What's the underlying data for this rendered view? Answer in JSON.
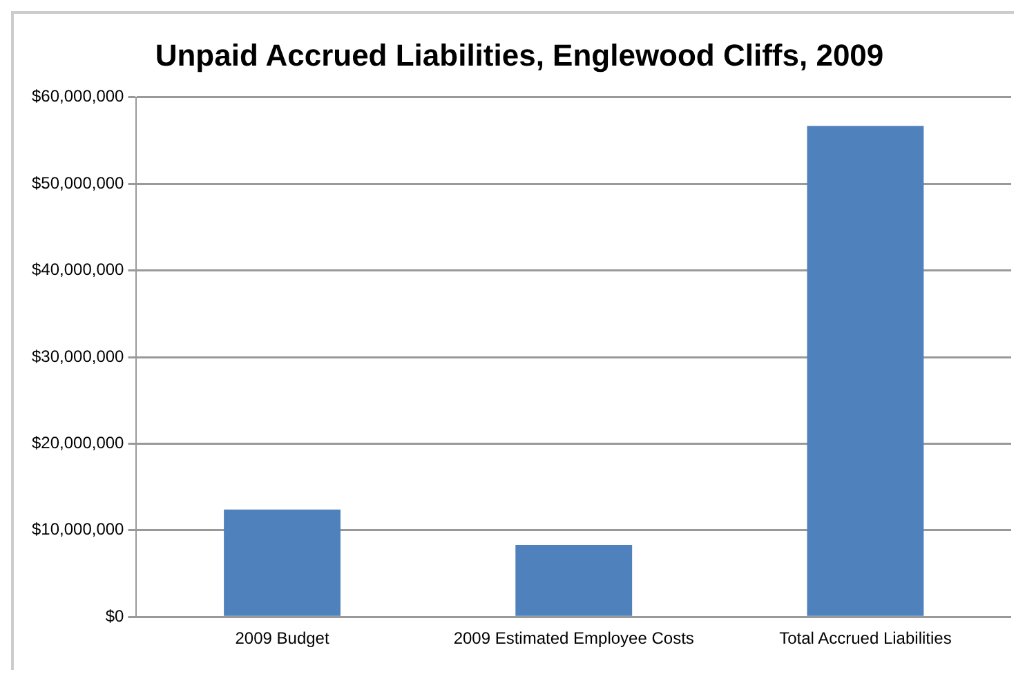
{
  "chart_data": {
    "type": "bar",
    "title": "Unpaid Accrued Liabilities, Englewood Cliffs, 2009",
    "categories": [
      "2009 Budget",
      "2009 Estimated Employee Costs",
      "Total Accrued Liabilities"
    ],
    "values": [
      12400000,
      8300000,
      56700000
    ],
    "color": "#4f81bd",
    "ylim": [
      0,
      60000000
    ],
    "yticks": [
      {
        "value": 0,
        "label": "$0"
      },
      {
        "value": 10000000,
        "label": "$10,000,000"
      },
      {
        "value": 20000000,
        "label": "$20,000,000"
      },
      {
        "value": 30000000,
        "label": "$30,000,000"
      },
      {
        "value": 40000000,
        "label": "$40,000,000"
      },
      {
        "value": 50000000,
        "label": "$50,000,000"
      },
      {
        "value": 60000000,
        "label": "$60,000,000"
      }
    ],
    "grid": "y"
  }
}
